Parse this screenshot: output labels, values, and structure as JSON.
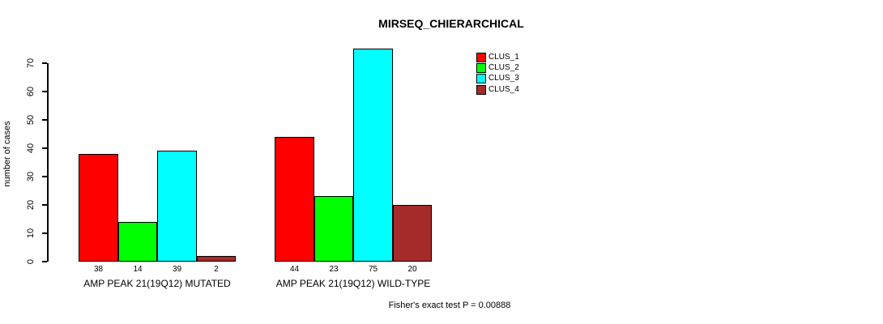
{
  "title": "MIRSEQ_CHIERARCHICAL",
  "y_axis_label": "number of cases",
  "footer": "Fisher's exact test P = 0.00888",
  "chart_data": {
    "type": "bar",
    "title": "MIRSEQ_CHIERARCHICAL",
    "xlabel": "",
    "ylabel": "number of cases",
    "ylim": [
      0,
      70
    ],
    "yticks": [
      0,
      10,
      20,
      30,
      40,
      50,
      60,
      70
    ],
    "grid": false,
    "legend_position": "top-right",
    "categories": [
      "AMP PEAK 21(19Q12) MUTATED",
      "AMP PEAK 21(19Q12) WILD-TYPE"
    ],
    "series": [
      {
        "name": "CLUS_1",
        "color": "#FF0000",
        "values": [
          38,
          44
        ]
      },
      {
        "name": "CLUS_2",
        "color": "#00FF00",
        "values": [
          14,
          23
        ]
      },
      {
        "name": "CLUS_3",
        "color": "#00FFFF",
        "values": [
          39,
          75
        ]
      },
      {
        "name": "CLUS_4",
        "color": "#A52A2A",
        "values": [
          2,
          20
        ]
      }
    ],
    "bar_value_labels": [
      [
        38,
        14,
        39,
        2
      ],
      [
        44,
        23,
        75,
        20
      ]
    ],
    "annotation": "Fisher's exact test P = 0.00888"
  }
}
